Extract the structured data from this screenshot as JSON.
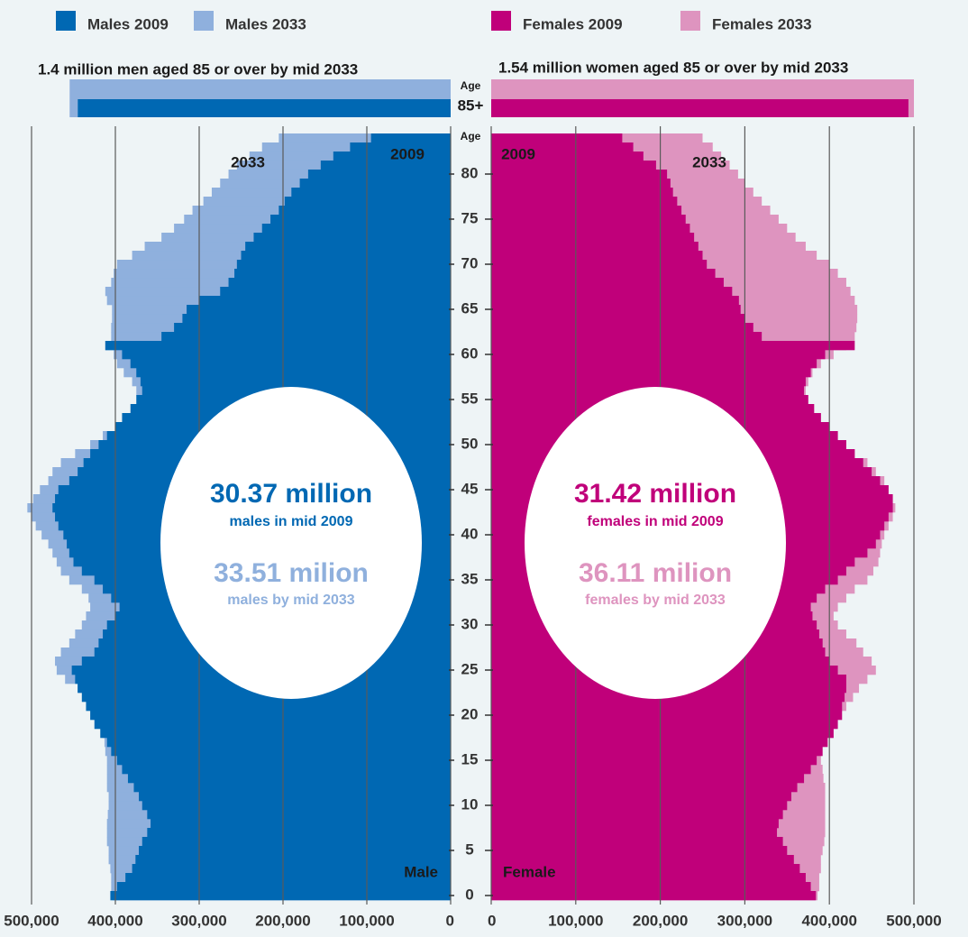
{
  "chart_data": {
    "type": "population-pyramid",
    "header_left": "1.4 million men aged 85 or over by mid 2033",
    "header_right": "1.54 million women aged 85 or over by mid 2033",
    "age_label": "Age",
    "inset_label": "85+",
    "ages": [
      0,
      1,
      2,
      3,
      4,
      5,
      6,
      7,
      8,
      9,
      10,
      11,
      12,
      13,
      14,
      15,
      16,
      17,
      18,
      19,
      20,
      21,
      22,
      23,
      24,
      25,
      26,
      27,
      28,
      29,
      30,
      31,
      32,
      33,
      34,
      35,
      36,
      37,
      38,
      39,
      40,
      41,
      42,
      43,
      44,
      45,
      46,
      47,
      48,
      49,
      50,
      51,
      52,
      53,
      54,
      55,
      56,
      57,
      58,
      59,
      60,
      61,
      62,
      63,
      64,
      65,
      66,
      67,
      68,
      69,
      70,
      71,
      72,
      73,
      74,
      75,
      76,
      77,
      78,
      79,
      80,
      81,
      82,
      83,
      84
    ],
    "ylim": [
      -0.5,
      84.5
    ],
    "yticks": [
      0,
      5,
      10,
      15,
      20,
      25,
      30,
      35,
      40,
      45,
      50,
      55,
      60,
      65,
      70,
      75,
      80
    ],
    "xlim_left": [
      0,
      500000
    ],
    "xticks_left": [
      {
        "value": 500000,
        "label": "500,000"
      },
      {
        "value": 400000,
        "label": "400,000"
      },
      {
        "value": 300000,
        "label": "300,000"
      },
      {
        "value": 200000,
        "label": "200,000"
      },
      {
        "value": 100000,
        "label": "100,000"
      },
      0
    ],
    "xlim_right": [
      0,
      500000
    ],
    "xticks_right": [
      0,
      {
        "value": 100000,
        "label": "100,000"
      },
      {
        "value": 200000,
        "label": "200,000"
      },
      {
        "value": 300000,
        "label": "300,000"
      },
      {
        "value": 400000,
        "label": "400,000"
      },
      {
        "value": 500000,
        "label": "500,000"
      }
    ],
    "inset_xlim": [
      0,
      1540000
    ],
    "grid": true,
    "series": [
      {
        "name": "Males 2033",
        "side": "left",
        "color": "#8fb0dd",
        "inset_value": 1400000,
        "values": [
          403000,
          405000,
          405000,
          406000,
          408000,
          408000,
          410000,
          410000,
          410000,
          409000,
          408000,
          408000,
          410000,
          410000,
          410000,
          410000,
          412000,
          413000,
          415000,
          418000,
          420000,
          425000,
          432000,
          445000,
          460000,
          470000,
          472000,
          465000,
          455000,
          448000,
          440000,
          435000,
          430000,
          432000,
          440000,
          455000,
          465000,
          470000,
          475000,
          480000,
          488000,
          495000,
          500000,
          505000,
          498000,
          490000,
          480000,
          475000,
          465000,
          448000,
          430000,
          415000,
          400000,
          385000,
          378000,
          372000,
          375000,
          380000,
          390000,
          398000,
          402000,
          412000,
          405000,
          405000,
          404000,
          404000,
          410000,
          412000,
          405000,
          402000,
          398000,
          380000,
          365000,
          345000,
          330000,
          318000,
          308000,
          295000,
          285000,
          275000,
          265000,
          255000,
          240000,
          225000,
          205000
        ]
      },
      {
        "name": "Males 2009",
        "side": "left",
        "color": "#0068b3",
        "inset_value": 1370000,
        "values": [
          406000,
          398000,
          388000,
          380000,
          376000,
          372000,
          368000,
          362000,
          358000,
          362000,
          368000,
          372000,
          378000,
          385000,
          392000,
          398000,
          405000,
          410000,
          418000,
          425000,
          430000,
          435000,
          440000,
          445000,
          448000,
          452000,
          440000,
          425000,
          420000,
          415000,
          410000,
          400000,
          395000,
          405000,
          415000,
          425000,
          440000,
          450000,
          455000,
          458000,
          462000,
          468000,
          472000,
          475000,
          472000,
          468000,
          455000,
          445000,
          438000,
          430000,
          420000,
          410000,
          400000,
          392000,
          382000,
          375000,
          368000,
          370000,
          375000,
          382000,
          392000,
          412000,
          345000,
          330000,
          320000,
          315000,
          300000,
          275000,
          265000,
          258000,
          255000,
          250000,
          245000,
          235000,
          225000,
          215000,
          205000,
          198000,
          190000,
          180000,
          170000,
          155000,
          140000,
          120000,
          95000
        ]
      },
      {
        "name": "Females 2033",
        "side": "right",
        "color": "#de94bf",
        "inset_value": 1540000,
        "values": [
          386000,
          388000,
          388000,
          390000,
          390000,
          392000,
          394000,
          395000,
          395000,
          395000,
          395000,
          395000,
          395000,
          393000,
          392000,
          390000,
          390000,
          392000,
          395000,
          400000,
          410000,
          420000,
          428000,
          435000,
          445000,
          455000,
          450000,
          440000,
          432000,
          420000,
          410000,
          405000,
          410000,
          420000,
          430000,
          445000,
          452000,
          458000,
          460000,
          462000,
          465000,
          470000,
          475000,
          478000,
          475000,
          470000,
          465000,
          455000,
          445000,
          430000,
          418000,
          410000,
          400000,
          390000,
          380000,
          375000,
          372000,
          375000,
          380000,
          390000,
          405000,
          420000,
          430000,
          432000,
          433000,
          433000,
          430000,
          425000,
          420000,
          410000,
          400000,
          385000,
          372000,
          360000,
          350000,
          340000,
          330000,
          320000,
          310000,
          300000,
          292000,
          282000,
          272000,
          262000,
          250000
        ]
      },
      {
        "name": "Females 2009",
        "side": "right",
        "color": "#c0007a",
        "inset_value": 1520000,
        "values": [
          384000,
          378000,
          372000,
          365000,
          358000,
          350000,
          345000,
          338000,
          340000,
          345000,
          350000,
          355000,
          362000,
          370000,
          378000,
          385000,
          392000,
          398000,
          405000,
          410000,
          415000,
          415000,
          418000,
          420000,
          420000,
          410000,
          400000,
          395000,
          392000,
          388000,
          385000,
          380000,
          378000,
          385000,
          395000,
          410000,
          420000,
          430000,
          445000,
          455000,
          460000,
          465000,
          470000,
          475000,
          475000,
          470000,
          460000,
          450000,
          440000,
          430000,
          420000,
          410000,
          400000,
          390000,
          382000,
          375000,
          370000,
          372000,
          378000,
          385000,
          395000,
          430000,
          320000,
          310000,
          300000,
          295000,
          293000,
          285000,
          275000,
          265000,
          255000,
          250000,
          245000,
          240000,
          235000,
          230000,
          225000,
          220000,
          215000,
          212000,
          208000,
          195000,
          180000,
          168000,
          155000
        ]
      }
    ],
    "annotations": {
      "male_2033": "2033",
      "male_2009": "2009",
      "female_2009": "2009",
      "female_2033": "2033",
      "male": "Male",
      "female": "Female"
    },
    "summary": {
      "male_2009_total": "30.37 million",
      "male_2009_text": "males in mid 2009",
      "male_2033_total": "33.51 milion",
      "male_2033_text": "males by mid 2033",
      "female_2009_total": "31.42 million",
      "female_2009_text": "females in mid 2009",
      "female_2033_total": "36.11 milion",
      "female_2033_text": "females by mid 2033"
    }
  }
}
